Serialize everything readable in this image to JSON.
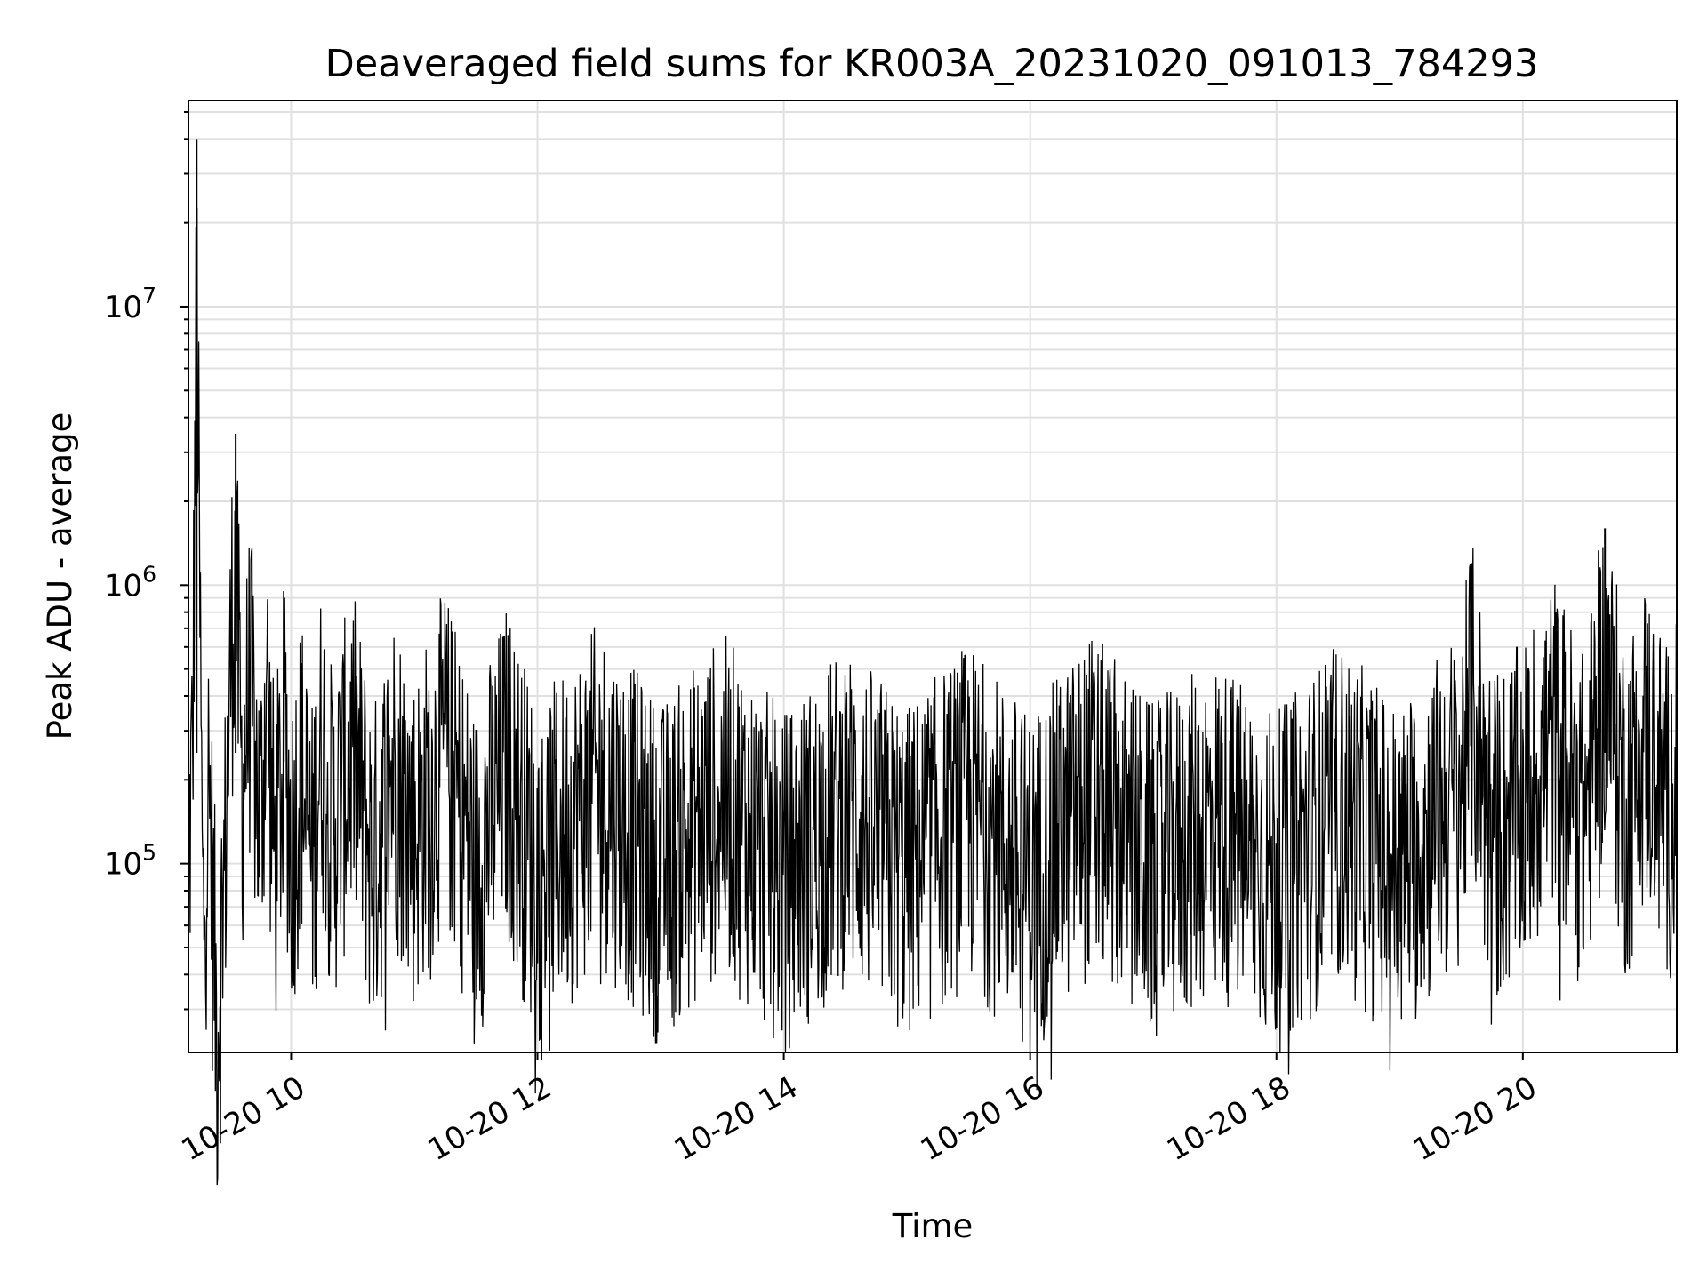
{
  "chart_data": {
    "type": "line",
    "title": "Deaveraged field sums for KR003A_20231020_091013_784293",
    "xlabel": "Time",
    "ylabel": "Peak ADU - average",
    "x_axis": {
      "scale": "time",
      "range": [
        "2023-10-20T09:10",
        "2023-10-20T21:15"
      ],
      "ticks": [
        {
          "value": "2023-10-20T10:00",
          "label": "10-20 10"
        },
        {
          "value": "2023-10-20T12:00",
          "label": "10-20 12"
        },
        {
          "value": "2023-10-20T14:00",
          "label": "10-20 14"
        },
        {
          "value": "2023-10-20T16:00",
          "label": "10-20 16"
        },
        {
          "value": "2023-10-20T18:00",
          "label": "10-20 18"
        },
        {
          "value": "2023-10-20T20:00",
          "label": "10-20 20"
        }
      ],
      "tick_label_rotation": 30
    },
    "y_axis": {
      "scale": "log",
      "range": [
        21000,
        55000000
      ],
      "ticks": [
        {
          "value": 100000,
          "base": "10",
          "exp": "5"
        },
        {
          "value": 1000000,
          "base": "10",
          "exp": "6"
        },
        {
          "value": 10000000,
          "base": "10",
          "exp": "7"
        }
      ]
    },
    "grid": true,
    "legend": "none",
    "series": [
      {
        "color": "#000000",
        "envelope": [
          [
            "09:10",
            300000
          ],
          [
            "09:12",
            750000
          ],
          [
            "09:14",
            40000000
          ],
          [
            "09:17",
            180000
          ],
          [
            "09:20",
            600000
          ],
          [
            "09:24",
            70000
          ],
          [
            "09:28",
            350000
          ],
          [
            "09:31",
            2100000
          ],
          [
            "09:33",
            3500000
          ],
          [
            "09:36",
            600000
          ],
          [
            "09:40",
            1400000
          ],
          [
            "09:45",
            400000
          ],
          [
            "09:48",
            1400000
          ],
          [
            "09:52",
            300000
          ],
          [
            "09:57",
            900000
          ],
          [
            "10:00",
            350000
          ],
          [
            "10:05",
            700000
          ],
          [
            "10:10",
            300000
          ],
          [
            "10:15",
            900000
          ],
          [
            "10:20",
            400000
          ],
          [
            "10:30",
            800000
          ],
          [
            "10:40",
            300000
          ],
          [
            "10:50",
            700000
          ],
          [
            "11:00",
            400000
          ],
          [
            "11:15",
            800000
          ],
          [
            "11:30",
            300000
          ],
          [
            "11:45",
            700000
          ],
          [
            "12:00",
            300000
          ],
          [
            "12:30",
            600000
          ],
          [
            "13:00",
            300000
          ],
          [
            "13:30",
            550000
          ],
          [
            "14:00",
            280000
          ],
          [
            "14:30",
            500000
          ],
          [
            "15:00",
            300000
          ],
          [
            "15:30",
            500000
          ],
          [
            "16:00",
            280000
          ],
          [
            "16:30",
            550000
          ],
          [
            "17:00",
            300000
          ],
          [
            "17:30",
            450000
          ],
          [
            "18:00",
            280000
          ],
          [
            "18:30",
            500000
          ],
          [
            "19:00",
            300000
          ],
          [
            "19:30",
            600000
          ],
          [
            "19:35",
            1200000
          ],
          [
            "19:45",
            400000
          ],
          [
            "20:00",
            500000
          ],
          [
            "20:15",
            900000
          ],
          [
            "20:30",
            450000
          ],
          [
            "20:40",
            1600000
          ],
          [
            "20:50",
            500000
          ],
          [
            "21:00",
            900000
          ],
          [
            "21:10",
            500000
          ],
          [
            "21:15",
            600000
          ]
        ],
        "noise_range_log10": [
          -0.9,
          0.35
        ]
      }
    ]
  }
}
